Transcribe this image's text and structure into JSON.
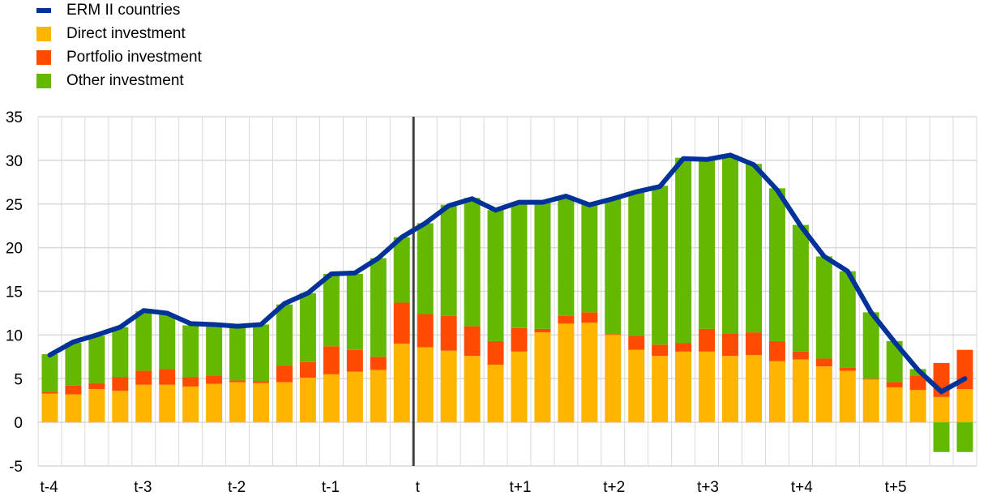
{
  "chart_data": {
    "type": "bar",
    "stacked": true,
    "title": "",
    "xlabel": "",
    "ylabel": "",
    "ylim": [
      -5,
      35
    ],
    "yticks": [
      -5,
      0,
      5,
      10,
      15,
      20,
      25,
      30,
      35
    ],
    "grid": true,
    "legend_position": "top-left",
    "x_tick_labels": [
      {
        "bar": 0,
        "label": "t-4"
      },
      {
        "bar": 4,
        "label": "t-3"
      },
      {
        "bar": 8,
        "label": "t-2"
      },
      {
        "bar": 12,
        "label": "t-1"
      },
      {
        "bar": 16,
        "label": "t"
      },
      {
        "bar": 20,
        "label": "t+1"
      },
      {
        "bar": 24,
        "label": "t+2"
      },
      {
        "bar": 28,
        "label": "t+3"
      },
      {
        "bar": 32,
        "label": "t+4"
      },
      {
        "bar": 36,
        "label": "t+5"
      }
    ],
    "marker_line_after_bar": 15,
    "series": [
      {
        "name": "Direct investment",
        "kind": "bar",
        "color": "#FFB400",
        "values": [
          3.3,
          3.2,
          3.8,
          3.6,
          4.3,
          4.3,
          4.1,
          4.4,
          4.6,
          4.5,
          4.6,
          5.1,
          5.5,
          5.8,
          6.0,
          9.0,
          8.6,
          8.2,
          7.6,
          6.6,
          8.1,
          10.3,
          11.3,
          11.4,
          10.0,
          8.3,
          7.6,
          8.1,
          8.1,
          7.6,
          7.7,
          7.0,
          7.2,
          6.4,
          5.9,
          4.9,
          4.0,
          3.7,
          2.9,
          3.8
        ]
      },
      {
        "name": "Portfolio investment",
        "kind": "bar",
        "color": "#FF4B00",
        "values": [
          0.2,
          1.0,
          0.7,
          1.6,
          1.6,
          1.8,
          1.1,
          0.9,
          0.2,
          0.2,
          1.9,
          1.8,
          3.2,
          2.5,
          1.5,
          4.7,
          3.8,
          4.0,
          3.4,
          2.7,
          2.7,
          0.4,
          0.9,
          1.2,
          0.1,
          1.6,
          1.3,
          1.0,
          2.6,
          2.6,
          2.6,
          2.3,
          0.9,
          0.9,
          0.4,
          0.1,
          0.6,
          1.6,
          3.9,
          4.5
        ]
      },
      {
        "name": "Other investment",
        "kind": "bar",
        "color": "#65B800",
        "values": [
          4.3,
          4.9,
          5.4,
          5.7,
          6.8,
          6.3,
          5.9,
          5.8,
          6.2,
          6.5,
          7.0,
          7.9,
          8.3,
          8.7,
          11.3,
          7.5,
          10.4,
          12.7,
          14.7,
          15.0,
          14.4,
          14.5,
          13.5,
          12.4,
          15.5,
          16.5,
          18.2,
          21.2,
          19.4,
          20.4,
          19.3,
          17.5,
          14.5,
          11.7,
          11.0,
          7.6,
          4.7,
          0.8,
          -3.4,
          -3.4
        ]
      },
      {
        "name": "ERM II countries",
        "kind": "line",
        "color": "#003299",
        "values": [
          7.7,
          9.2,
          10.0,
          10.9,
          12.8,
          12.5,
          11.3,
          11.2,
          11.0,
          11.2,
          13.6,
          14.8,
          17.0,
          17.1,
          18.8,
          21.2,
          22.8,
          24.8,
          25.6,
          24.3,
          25.2,
          25.2,
          25.9,
          24.9,
          25.6,
          26.4,
          27.0,
          30.2,
          30.1,
          30.6,
          29.5,
          26.6,
          22.5,
          19.0,
          17.3,
          12.6,
          9.2,
          6.0,
          3.5,
          5.0
        ]
      }
    ],
    "legend": [
      "ERM II countries",
      "Direct investment",
      "Portfolio investment",
      "Other investment"
    ]
  }
}
